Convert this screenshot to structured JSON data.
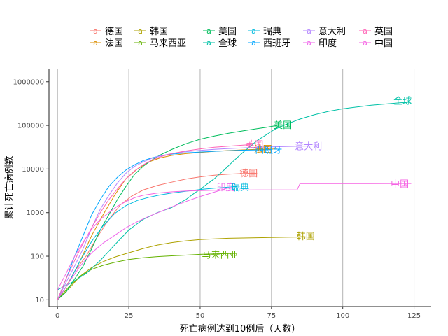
{
  "chart_data": {
    "type": "line",
    "xlabel": "死亡病例达到10例后（天数）",
    "ylabel": "累计死亡病例数",
    "x_scale": "linear",
    "y_scale": "log10",
    "xlim": [
      -3,
      131
    ],
    "ylim": [
      7,
      2000000
    ],
    "x_ticks": [
      0,
      25,
      50,
      75,
      100,
      125
    ],
    "y_ticks": [
      10,
      100,
      1000,
      10000,
      100000,
      1000000
    ],
    "y_tick_labels": [
      "10",
      "100",
      "1000",
      "10000",
      "100000",
      "1000000"
    ],
    "grid": "vertical-major",
    "legend_position": "top",
    "series": [
      {
        "name": "德国",
        "color": "#F8766D",
        "end_label": "德国",
        "points": [
          [
            0,
            10
          ],
          [
            3,
            20
          ],
          [
            6,
            45
          ],
          [
            10,
            100
          ],
          [
            14,
            280
          ],
          [
            18,
            700
          ],
          [
            22,
            1500
          ],
          [
            26,
            2400
          ],
          [
            30,
            3300
          ],
          [
            35,
            4200
          ],
          [
            40,
            5000
          ],
          [
            45,
            5900
          ],
          [
            50,
            6600
          ],
          [
            55,
            7200
          ],
          [
            60,
            7600
          ],
          [
            65,
            7900
          ],
          [
            70,
            8000
          ]
        ]
      },
      {
        "name": "法国",
        "color": "#DB8E00",
        "end_label": "法国",
        "points": [
          [
            0,
            10
          ],
          [
            4,
            25
          ],
          [
            8,
            80
          ],
          [
            12,
            300
          ],
          [
            16,
            900
          ],
          [
            20,
            2500
          ],
          [
            24,
            6000
          ],
          [
            28,
            10000
          ],
          [
            32,
            14500
          ],
          [
            36,
            18000
          ],
          [
            40,
            20500
          ],
          [
            45,
            22500
          ],
          [
            50,
            24000
          ],
          [
            55,
            25500
          ],
          [
            60,
            26500
          ],
          [
            65,
            27500
          ],
          [
            70,
            28300
          ],
          [
            75,
            28700
          ],
          [
            77,
            28900
          ]
        ]
      },
      {
        "name": "韩国",
        "color": "#AEA200",
        "end_label": "韩国",
        "points": [
          [
            0,
            10
          ],
          [
            4,
            18
          ],
          [
            8,
            35
          ],
          [
            12,
            55
          ],
          [
            16,
            75
          ],
          [
            20,
            95
          ],
          [
            25,
            120
          ],
          [
            30,
            150
          ],
          [
            35,
            180
          ],
          [
            40,
            205
          ],
          [
            45,
            225
          ],
          [
            50,
            240
          ],
          [
            55,
            250
          ],
          [
            60,
            258
          ],
          [
            70,
            266
          ],
          [
            80,
            272
          ],
          [
            90,
            278
          ]
        ]
      },
      {
        "name": "马来西亚",
        "color": "#64B200",
        "end_label": "马来西亚",
        "points": [
          [
            0,
            10
          ],
          [
            4,
            20
          ],
          [
            8,
            35
          ],
          [
            12,
            50
          ],
          [
            16,
            62
          ],
          [
            20,
            72
          ],
          [
            25,
            84
          ],
          [
            30,
            92
          ],
          [
            35,
            98
          ],
          [
            40,
            102
          ],
          [
            45,
            106
          ],
          [
            50,
            110
          ],
          [
            55,
            113
          ],
          [
            60,
            115
          ],
          [
            63,
            116
          ]
        ]
      },
      {
        "name": "美国",
        "color": "#00BD5C",
        "end_label": "美国",
        "points": [
          [
            0,
            10
          ],
          [
            3,
            15
          ],
          [
            6,
            30
          ],
          [
            9,
            60
          ],
          [
            12,
            150
          ],
          [
            15,
            400
          ],
          [
            18,
            900
          ],
          [
            21,
            2000
          ],
          [
            24,
            4000
          ],
          [
            27,
            7500
          ],
          [
            30,
            11500
          ],
          [
            33,
            16000
          ],
          [
            36,
            21000
          ],
          [
            40,
            28000
          ],
          [
            45,
            38000
          ],
          [
            50,
            48000
          ],
          [
            55,
            57000
          ],
          [
            60,
            66000
          ],
          [
            65,
            75000
          ],
          [
            70,
            84000
          ],
          [
            74,
            92000
          ],
          [
            77,
            100000
          ]
        ]
      },
      {
        "name": "全球",
        "color": "#00C1A7",
        "end_label": "全球",
        "points": [
          [
            0,
            17
          ],
          [
            5,
            25
          ],
          [
            10,
            40
          ],
          [
            15,
            80
          ],
          [
            20,
            180
          ],
          [
            25,
            400
          ],
          [
            30,
            700
          ],
          [
            35,
            1000
          ],
          [
            40,
            1300
          ],
          [
            45,
            2000
          ],
          [
            48,
            2800
          ],
          [
            50,
            3400
          ],
          [
            52,
            4300
          ],
          [
            55,
            6000
          ],
          [
            58,
            9000
          ],
          [
            60,
            12000
          ],
          [
            62,
            16000
          ],
          [
            65,
            24000
          ],
          [
            68,
            35000
          ],
          [
            70,
            45000
          ],
          [
            73,
            60000
          ],
          [
            76,
            80000
          ],
          [
            80,
            105000
          ],
          [
            85,
            140000
          ],
          [
            90,
            175000
          ],
          [
            95,
            210000
          ],
          [
            100,
            240000
          ],
          [
            105,
            265000
          ],
          [
            110,
            290000
          ],
          [
            115,
            310000
          ],
          [
            120,
            330000
          ],
          [
            124,
            345000
          ]
        ]
      },
      {
        "name": "瑞典",
        "color": "#00BADE",
        "end_label": "瑞典",
        "points": [
          [
            0,
            10
          ],
          [
            4,
            25
          ],
          [
            8,
            80
          ],
          [
            12,
            220
          ],
          [
            16,
            500
          ],
          [
            20,
            950
          ],
          [
            24,
            1450
          ],
          [
            28,
            1900
          ],
          [
            32,
            2250
          ],
          [
            36,
            2550
          ],
          [
            40,
            2800
          ],
          [
            45,
            3100
          ],
          [
            50,
            3400
          ],
          [
            55,
            3650
          ],
          [
            60,
            3850
          ],
          [
            63,
            3950
          ]
        ]
      },
      {
        "name": "西班牙",
        "color": "#00A6FF",
        "end_label": "西班牙",
        "points": [
          [
            0,
            10
          ],
          [
            3,
            30
          ],
          [
            6,
            100
          ],
          [
            9,
            300
          ],
          [
            12,
            900
          ],
          [
            15,
            2000
          ],
          [
            18,
            4000
          ],
          [
            21,
            6500
          ],
          [
            24,
            9500
          ],
          [
            27,
            12500
          ],
          [
            30,
            15500
          ],
          [
            33,
            18000
          ],
          [
            36,
            20000
          ],
          [
            40,
            22000
          ],
          [
            45,
            23500
          ],
          [
            50,
            24500
          ],
          [
            55,
            25500
          ],
          [
            60,
            26300
          ],
          [
            65,
            27000
          ],
          [
            70,
            27400
          ],
          [
            75,
            27700
          ]
        ]
      },
      {
        "name": "意大利",
        "color": "#B385FF",
        "end_label": "意大利",
        "points": [
          [
            0,
            10
          ],
          [
            3,
            25
          ],
          [
            6,
            60
          ],
          [
            9,
            150
          ],
          [
            12,
            450
          ],
          [
            15,
            1200
          ],
          [
            18,
            2500
          ],
          [
            21,
            4800
          ],
          [
            24,
            8000
          ],
          [
            27,
            11500
          ],
          [
            30,
            14500
          ],
          [
            33,
            17500
          ],
          [
            36,
            20000
          ],
          [
            40,
            22500
          ],
          [
            45,
            25000
          ],
          [
            50,
            26700
          ],
          [
            55,
            28200
          ],
          [
            60,
            29500
          ],
          [
            65,
            30500
          ],
          [
            70,
            31500
          ],
          [
            75,
            32300
          ],
          [
            80,
            32900
          ],
          [
            85,
            33300
          ],
          [
            90,
            33700
          ]
        ]
      },
      {
        "name": "印度",
        "color": "#EF67EB",
        "end_label": "印度",
        "points": [
          [
            0,
            10
          ],
          [
            4,
            25
          ],
          [
            8,
            60
          ],
          [
            12,
            120
          ],
          [
            16,
            200
          ],
          [
            20,
            300
          ],
          [
            24,
            450
          ],
          [
            28,
            620
          ],
          [
            32,
            820
          ],
          [
            36,
            1050
          ],
          [
            40,
            1350
          ],
          [
            45,
            1800
          ],
          [
            50,
            2350
          ],
          [
            55,
            2950
          ],
          [
            58,
            3400
          ],
          [
            60,
            3700
          ]
        ]
      },
      {
        "name": "英国",
        "color": "#FF63B6",
        "end_label": "英国",
        "points": [
          [
            0,
            10
          ],
          [
            3,
            30
          ],
          [
            6,
            80
          ],
          [
            9,
            200
          ],
          [
            12,
            450
          ],
          [
            15,
            1000
          ],
          [
            18,
            2000
          ],
          [
            21,
            3500
          ],
          [
            24,
            6000
          ],
          [
            27,
            9000
          ],
          [
            30,
            12500
          ],
          [
            33,
            16000
          ],
          [
            36,
            19000
          ],
          [
            40,
            22500
          ],
          [
            45,
            26000
          ],
          [
            50,
            29000
          ],
          [
            55,
            31500
          ],
          [
            60,
            33500
          ],
          [
            65,
            35300
          ],
          [
            68,
            36500
          ]
        ]
      },
      {
        "name": "中国",
        "color": "#F564E3",
        "end_label": "中国",
        "points": [
          [
            0,
            17
          ],
          [
            3,
            40
          ],
          [
            6,
            100
          ],
          [
            9,
            210
          ],
          [
            12,
            420
          ],
          [
            15,
            700
          ],
          [
            18,
            1000
          ],
          [
            21,
            1400
          ],
          [
            24,
            1800
          ],
          [
            27,
            2200
          ],
          [
            30,
            2500
          ],
          [
            35,
            2800
          ],
          [
            40,
            3000
          ],
          [
            45,
            3150
          ],
          [
            50,
            3200
          ],
          [
            55,
            3250
          ],
          [
            60,
            3280
          ],
          [
            65,
            3300
          ],
          [
            70,
            3310
          ],
          [
            75,
            3320
          ],
          [
            80,
            3330
          ],
          [
            84,
            3340
          ],
          [
            85,
            4630
          ],
          [
            90,
            4633
          ],
          [
            100,
            4636
          ],
          [
            110,
            4640
          ],
          [
            120,
            4645
          ],
          [
            124,
            4648
          ]
        ]
      }
    ],
    "end_labels": [
      {
        "series": "全球",
        "x": 121,
        "y": 370000
      },
      {
        "series": "美国",
        "x": 79,
        "y": 105000
      },
      {
        "series": "英国",
        "x": 69,
        "y": 37000
      },
      {
        "series": "法国",
        "x": 72,
        "y": 29000
      },
      {
        "series": "西班牙",
        "x": 74,
        "y": 28000
      },
      {
        "series": "意大利",
        "x": 88,
        "y": 33500
      },
      {
        "series": "德国",
        "x": 67,
        "y": 8200
      },
      {
        "series": "中国",
        "x": 120,
        "y": 4700
      },
      {
        "series": "印度",
        "x": 59,
        "y": 3900
      },
      {
        "series": "瑞典",
        "x": 64,
        "y": 3900
      },
      {
        "series": "韩国",
        "x": 87,
        "y": 290
      },
      {
        "series": "马来西亚",
        "x": 57,
        "y": 110
      }
    ],
    "legend": [
      [
        "德国",
        "法国"
      ],
      [
        "韩国",
        "马来西亚"
      ],
      [
        "美国",
        "全球"
      ],
      [
        "瑞典",
        "西班牙"
      ],
      [
        "意大利",
        "印度"
      ],
      [
        "英国",
        "中国"
      ]
    ],
    "legend_key_glyph": "a"
  }
}
